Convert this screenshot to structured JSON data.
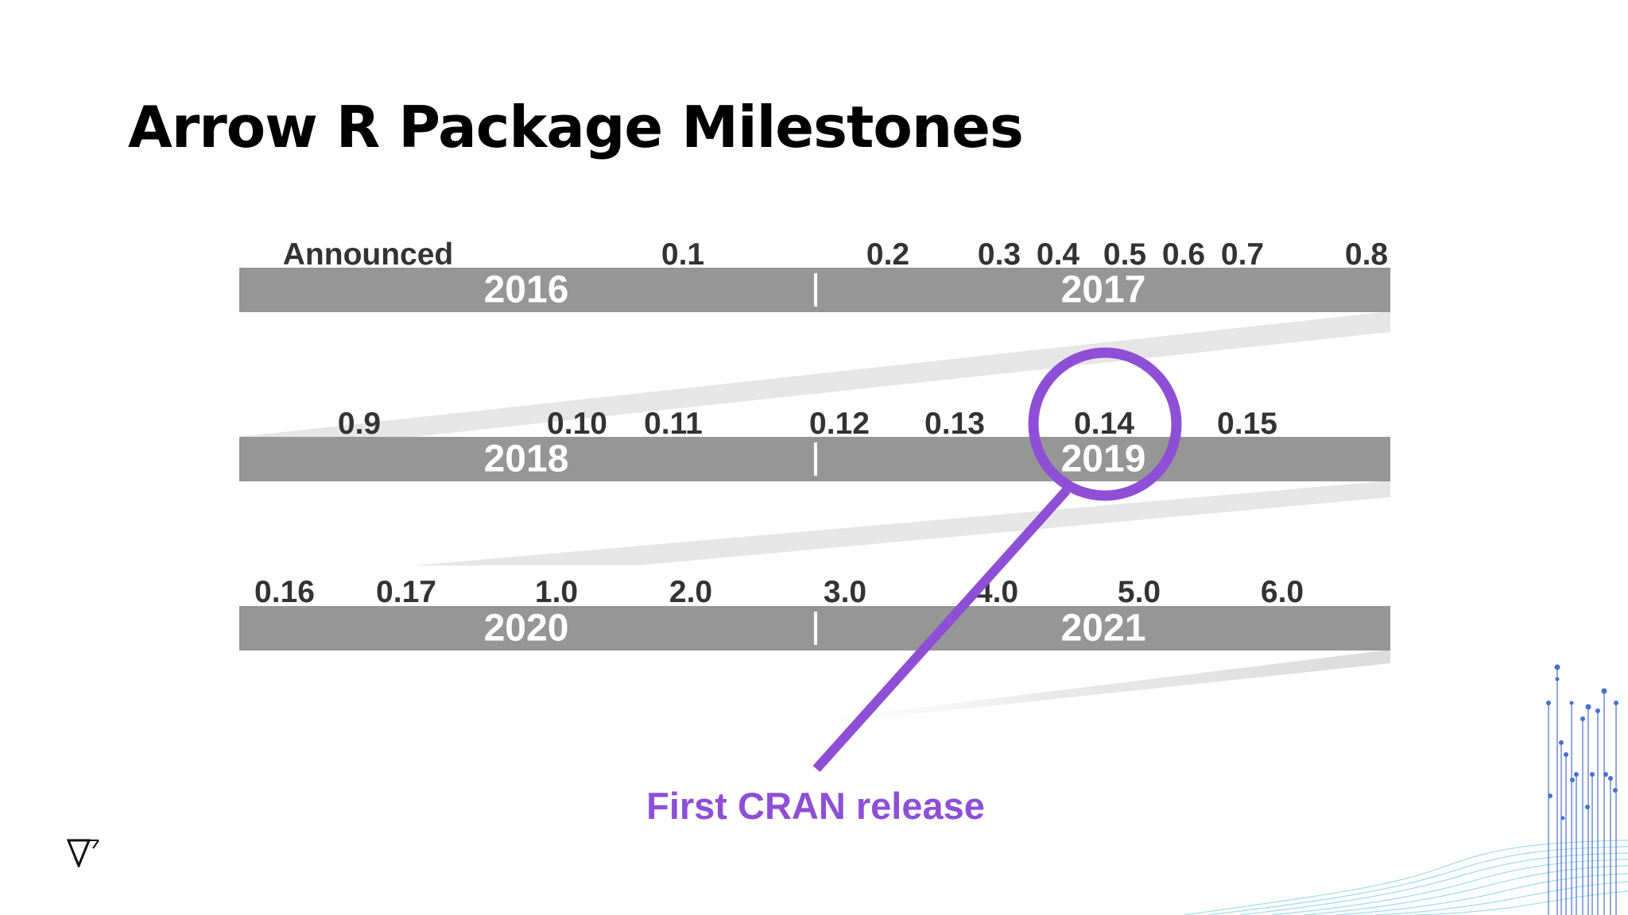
{
  "title": "Arrow R Package Milestones",
  "colors": {
    "band": "#969696",
    "milestone_text": "#333333",
    "highlight": "#8e4fd6",
    "title": "#000000"
  },
  "rows": [
    {
      "years": [
        "2016",
        "2017"
      ],
      "milestones": [
        "Announced",
        "0.1",
        "0.2",
        "0.3",
        "0.4",
        "0.5",
        "0.6",
        "0.7",
        "0.8"
      ]
    },
    {
      "years": [
        "2018",
        "2019"
      ],
      "milestones": [
        "0.9",
        "0.10",
        "0.11",
        "0.12",
        "0.13",
        "0.14",
        "0.15"
      ]
    },
    {
      "years": [
        "2020",
        "2021"
      ],
      "milestones": [
        "0.16",
        "0.17",
        "1.0",
        "2.0",
        "3.0",
        "4.0",
        "5.0",
        "6.0"
      ]
    }
  ],
  "highlight": {
    "milestone": "0.14",
    "label": "First CRAN release"
  },
  "icons": [
    "logo-icon",
    "decorative-network-graphic"
  ]
}
